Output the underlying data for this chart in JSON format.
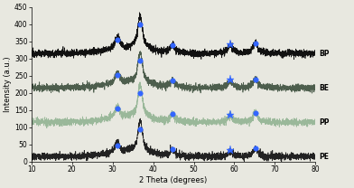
{
  "xlabel": "2 Theta (degrees)",
  "ylabel": "Intensity (a.u.)",
  "xlim": [
    10,
    80
  ],
  "ylim": [
    0,
    450
  ],
  "yticks": [
    0,
    50,
    100,
    150,
    200,
    250,
    300,
    350,
    400,
    450
  ],
  "xticks": [
    10,
    20,
    30,
    40,
    50,
    60,
    70,
    80
  ],
  "series_labels": [
    "BP",
    "BE",
    "PP",
    "PE"
  ],
  "series_colors": [
    "#111111",
    "#4d5e4d",
    "#9ab89a",
    "#222222"
  ],
  "series_offsets": [
    315,
    215,
    115,
    15
  ],
  "series_base_noise": [
    5,
    5,
    5,
    5
  ],
  "peaks_zncoo4": [
    31.2,
    36.8,
    44.8,
    65.2
  ],
  "peaks_zno": [
    59.0
  ],
  "peak_heights_narrow": {
    "31.2": [
      28,
      25,
      28,
      22
    ],
    "36.8": [
      72,
      68,
      72,
      68
    ],
    "44.8": [
      16,
      13,
      16,
      13
    ],
    "65.2": [
      22,
      18,
      20,
      16
    ],
    "59.0": [
      18,
      15,
      14,
      12
    ]
  },
  "marker_color": "#3366ff",
  "background_color": "#e8e8e0",
  "label_fontsize": 5.5,
  "axis_fontsize": 6,
  "tick_fontsize": 5.5
}
